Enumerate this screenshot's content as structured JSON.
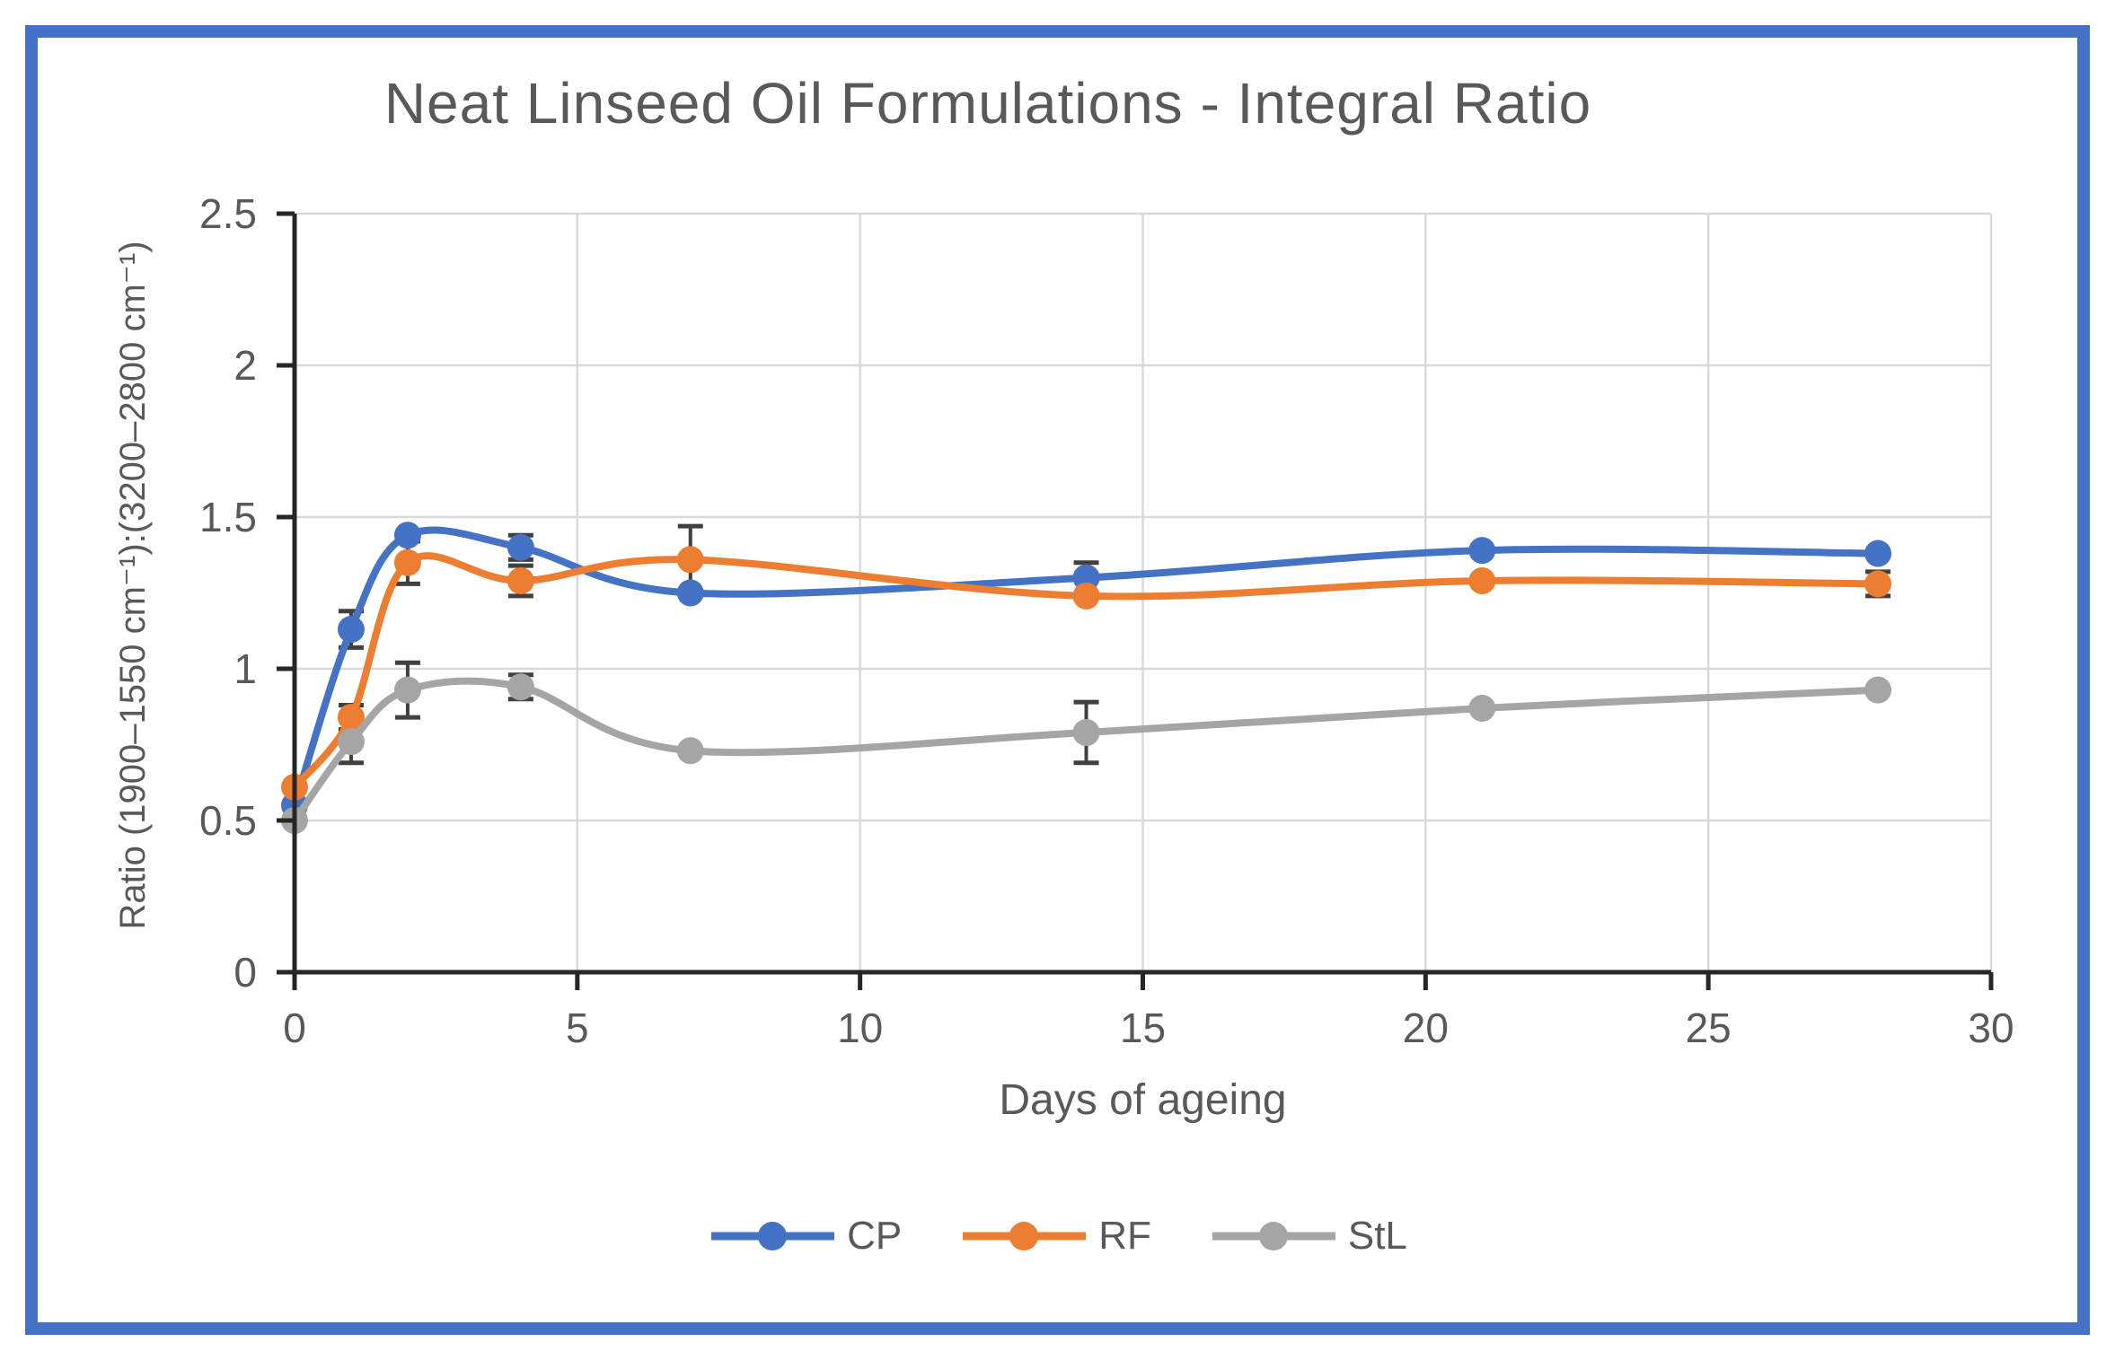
{
  "page": {
    "background_color": "#ffffff",
    "frame_border_color": "#4472C4"
  },
  "chart_data": {
    "type": "line",
    "title": "Neat Linseed Oil Formulations - Integral Ratio",
    "xlabel": "Days of ageing",
    "ylabel": "Ratio (1900–1550 cm⁻¹):(3200–2800 cm⁻¹)",
    "x": [
      0,
      1,
      2,
      4,
      7,
      14,
      21,
      28
    ],
    "xlim": [
      0,
      30
    ],
    "ylim": [
      0,
      2.5
    ],
    "x_ticks": [
      0,
      5,
      10,
      15,
      20,
      25,
      30
    ],
    "y_ticks": [
      0,
      0.5,
      1,
      1.5,
      2,
      2.5
    ],
    "grid": true,
    "smooth": true,
    "legend_position": "bottom",
    "axis_color": "#262626",
    "gridline_color": "#D9D9D9",
    "tick_label_color": "#595959",
    "error_bar_color": "#404040",
    "series": [
      {
        "name": "CP",
        "color": "#4472C4",
        "values": [
          0.55,
          1.13,
          1.44,
          1.4,
          1.25,
          1.3,
          1.39,
          1.38
        ],
        "errors": [
          0,
          0.06,
          0,
          0.04,
          0,
          0.05,
          0,
          0
        ]
      },
      {
        "name": "RF",
        "color": "#ED7D31",
        "values": [
          0.61,
          0.84,
          1.35,
          1.29,
          1.36,
          1.24,
          1.29,
          1.28
        ],
        "errors": [
          0,
          0.04,
          0.07,
          0.05,
          0.11,
          0,
          0,
          0.04
        ]
      },
      {
        "name": "StL",
        "color": "#A5A5A5",
        "values": [
          0.5,
          0.76,
          0.93,
          0.94,
          0.73,
          0.79,
          0.87,
          0.93
        ],
        "errors": [
          0,
          0.07,
          0.09,
          0.04,
          0,
          0.1,
          0,
          0
        ]
      }
    ]
  }
}
